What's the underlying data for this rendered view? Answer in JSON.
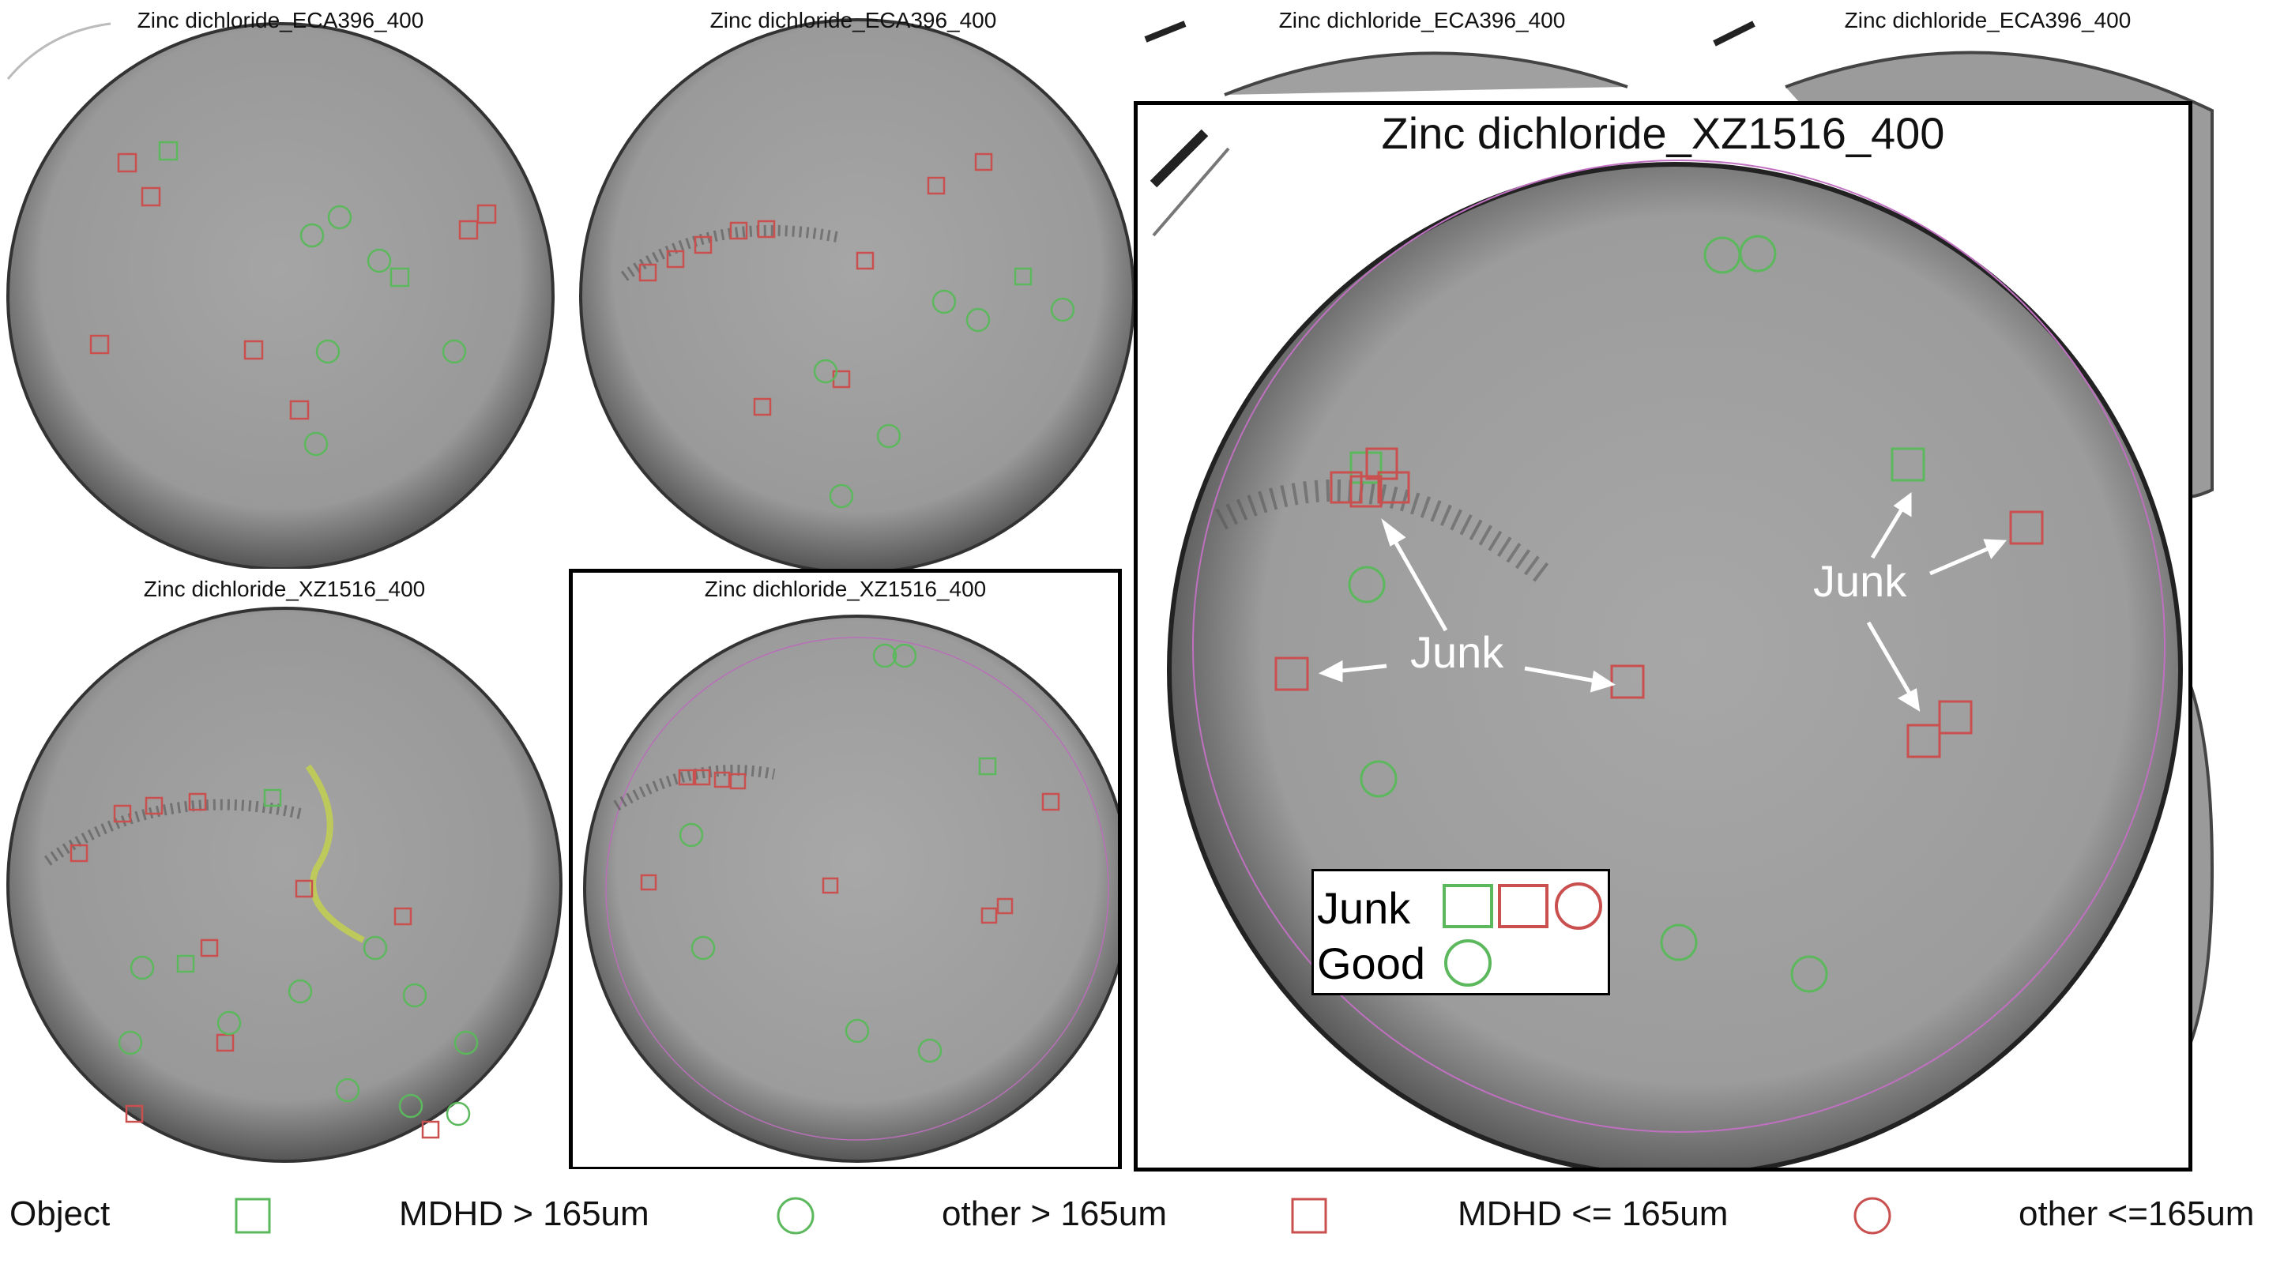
{
  "panels": [
    {
      "title": "Zinc dichloride_ECA396_400"
    },
    {
      "title": "Zinc dichloride_ECA396_400"
    },
    {
      "title": "Zinc dichloride_ECA396_400"
    },
    {
      "title": "Zinc dichloride_ECA396_400"
    },
    {
      "title": "Zinc dichloride_XZ1516_400"
    },
    {
      "title": "Zinc dichloride_XZ1516_400"
    }
  ],
  "zoom_panel": {
    "title": "Zinc dichloride_XZ1516_400",
    "callouts": [
      "Junk",
      "Junk"
    ],
    "inset": {
      "junk_label": "Junk",
      "good_label": "Good"
    }
  },
  "legend": {
    "object_label": "Object",
    "items": [
      {
        "label": "MDHD > 165um",
        "shape": "square",
        "color": "#5cb85c"
      },
      {
        "label": "other > 165um",
        "shape": "circle",
        "color": "#5cb85c"
      },
      {
        "label": "MDHD <= 165um",
        "shape": "square",
        "color": "#c9504f"
      },
      {
        "label": "other <=165um",
        "shape": "circle",
        "color": "#c9504f"
      }
    ]
  },
  "colors": {
    "green": "#5cb85c",
    "red": "#c9504f",
    "dish": "#9a9a9a",
    "frame": "#000000"
  }
}
